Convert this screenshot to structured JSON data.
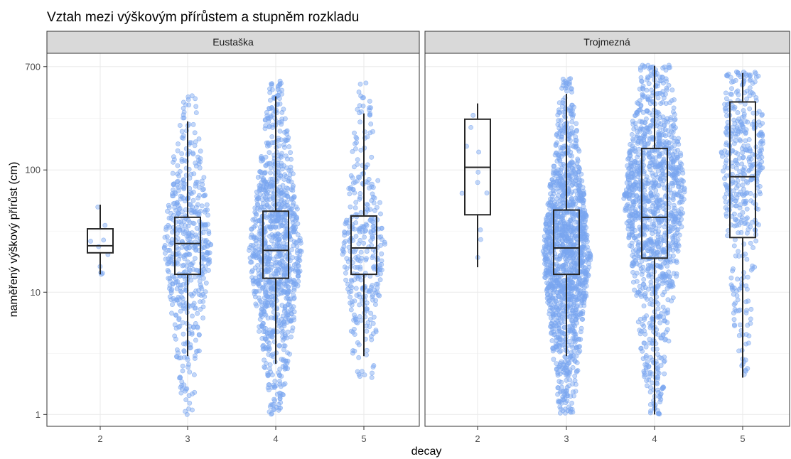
{
  "chart_data": {
    "type": "box",
    "title": "Vztah mezi výškovým přírůstem a stupněm rozkladu",
    "xlabel": "decay",
    "ylabel": "naměřený výškový přírůst (cm)",
    "y_scale": "log10",
    "ylim": [
      0.8,
      900
    ],
    "y_ticks": [
      "1",
      "10",
      "100",
      "700"
    ],
    "y_tick_values": [
      1,
      10,
      100,
      700
    ],
    "x_categories": [
      "2",
      "3",
      "4",
      "5"
    ],
    "grid": true,
    "point_color": "#7aa6f0",
    "box_color": "#262626",
    "panels": [
      {
        "name": "Eustaška",
        "boxes": [
          {
            "x": "2",
            "whisker_low": 14,
            "q1": 21,
            "median": 24,
            "q3": 33,
            "whisker_high": 52
          },
          {
            "x": "3",
            "whisker_low": 3,
            "q1": 14,
            "median": 25,
            "q3": 41,
            "whisker_high": 250
          },
          {
            "x": "4",
            "whisker_low": 2.6,
            "q1": 13,
            "median": 22,
            "q3": 46,
            "whisker_high": 400
          },
          {
            "x": "5",
            "whisker_low": 3,
            "q1": 14,
            "median": 23,
            "q3": 42,
            "whisker_high": 290
          }
        ],
        "point_groups": [
          {
            "x": "2",
            "n": 10,
            "min": 14,
            "max": 52,
            "center": 25,
            "width": 0.25
          },
          {
            "x": "3",
            "n": 520,
            "min": 1,
            "max": 420,
            "center": 25,
            "width": 0.55
          },
          {
            "x": "4",
            "n": 1000,
            "min": 1,
            "max": 550,
            "center": 22,
            "width": 0.62
          },
          {
            "x": "5",
            "n": 330,
            "min": 2,
            "max": 540,
            "center": 22,
            "width": 0.5
          }
        ]
      },
      {
        "name": "Trojmezná",
        "boxes": [
          {
            "x": "2",
            "whisker_low": 16,
            "q1": 43,
            "median": 105,
            "q3": 260,
            "whisker_high": 350
          },
          {
            "x": "3",
            "whisker_low": 3,
            "q1": 14,
            "median": 23,
            "q3": 47,
            "whisker_high": 420
          },
          {
            "x": "4",
            "whisker_low": 1,
            "q1": 19,
            "median": 41,
            "q3": 150,
            "whisker_high": 710
          },
          {
            "x": "5",
            "whisker_low": 2,
            "q1": 28,
            "median": 88,
            "q3": 360,
            "whisker_high": 620
          }
        ],
        "point_groups": [
          {
            "x": "2",
            "n": 11,
            "min": 16,
            "max": 350,
            "center": 100,
            "width": 0.45
          },
          {
            "x": "3",
            "n": 1400,
            "min": 1,
            "max": 560,
            "center": 20,
            "width": 0.55
          },
          {
            "x": "4",
            "n": 1200,
            "min": 1,
            "max": 720,
            "center": 60,
            "width": 0.7
          },
          {
            "x": "5",
            "n": 420,
            "min": 2,
            "max": 640,
            "center": 150,
            "width": 0.5
          }
        ]
      }
    ]
  }
}
